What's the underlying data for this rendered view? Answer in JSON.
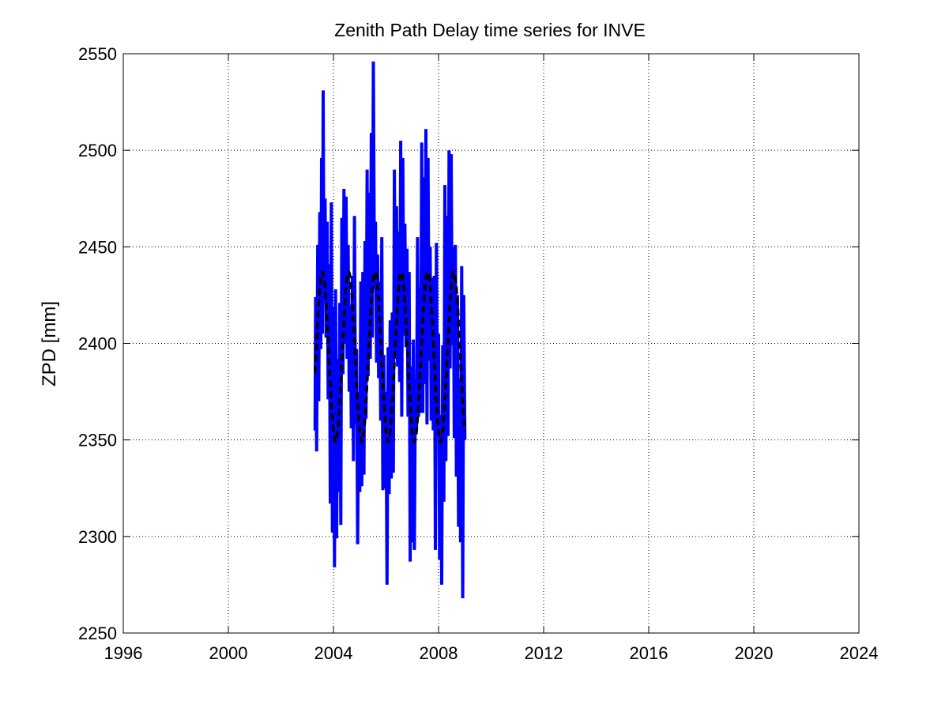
{
  "chart_data": {
    "type": "line",
    "title": "Zenith Path Delay time series for INVE",
    "xlabel": "",
    "ylabel": "ZPD [mm]",
    "xlim": [
      1996,
      2024
    ],
    "ylim": [
      2250,
      2550
    ],
    "xticks": [
      1996,
      2000,
      2004,
      2008,
      2012,
      2016,
      2020,
      2024
    ],
    "yticks": [
      2250,
      2300,
      2350,
      2400,
      2450,
      2500,
      2550
    ],
    "grid": true,
    "legend": "none",
    "series": [
      {
        "style": "solid",
        "color": "#0000ff",
        "x_start": 2003.3,
        "x_end": 2009.0,
        "y_min": 2268,
        "y_max": 2546,
        "values": [
          [
            2003.3,
            2355
          ],
          [
            2003.32,
            2424
          ],
          [
            2003.36,
            2344
          ],
          [
            2003.4,
            2451
          ],
          [
            2003.44,
            2370
          ],
          [
            2003.48,
            2468
          ],
          [
            2003.52,
            2397
          ],
          [
            2003.55,
            2496
          ],
          [
            2003.58,
            2405
          ],
          [
            2003.61,
            2531
          ],
          [
            2003.64,
            2421
          ],
          [
            2003.68,
            2475
          ],
          [
            2003.72,
            2403
          ],
          [
            2003.76,
            2463
          ],
          [
            2003.8,
            2371
          ],
          [
            2003.84,
            2441
          ],
          [
            2003.88,
            2317
          ],
          [
            2003.92,
            2473
          ],
          [
            2003.96,
            2302
          ],
          [
            2004.0,
            2419
          ],
          [
            2004.04,
            2284
          ],
          [
            2004.08,
            2428
          ],
          [
            2004.12,
            2299
          ],
          [
            2004.16,
            2392
          ],
          [
            2004.2,
            2323
          ],
          [
            2004.24,
            2421
          ],
          [
            2004.28,
            2306
          ],
          [
            2004.32,
            2465
          ],
          [
            2004.36,
            2384
          ],
          [
            2004.4,
            2480
          ],
          [
            2004.44,
            2400
          ],
          [
            2004.48,
            2476
          ],
          [
            2004.52,
            2392
          ],
          [
            2004.56,
            2451
          ],
          [
            2004.6,
            2375
          ],
          [
            2004.64,
            2420
          ],
          [
            2004.68,
            2356
          ],
          [
            2004.72,
            2435
          ],
          [
            2004.76,
            2339
          ],
          [
            2004.8,
            2466
          ],
          [
            2004.84,
            2358
          ],
          [
            2004.88,
            2397
          ],
          [
            2004.92,
            2296
          ],
          [
            2004.96,
            2375
          ],
          [
            2005.0,
            2323
          ],
          [
            2005.04,
            2432
          ],
          [
            2005.08,
            2326
          ],
          [
            2005.12,
            2437
          ],
          [
            2005.16,
            2332
          ],
          [
            2005.2,
            2453
          ],
          [
            2005.24,
            2361
          ],
          [
            2005.28,
            2490
          ],
          [
            2005.32,
            2383
          ],
          [
            2005.36,
            2478
          ],
          [
            2005.4,
            2392
          ],
          [
            2005.44,
            2509
          ],
          [
            2005.48,
            2403
          ],
          [
            2005.52,
            2546
          ],
          [
            2005.56,
            2428
          ],
          [
            2005.6,
            2463
          ],
          [
            2005.64,
            2390
          ],
          [
            2005.68,
            2446
          ],
          [
            2005.72,
            2382
          ],
          [
            2005.76,
            2432
          ],
          [
            2005.8,
            2360
          ],
          [
            2005.84,
            2455
          ],
          [
            2005.88,
            2324
          ],
          [
            2005.92,
            2394
          ],
          [
            2005.96,
            2325
          ],
          [
            2006.0,
            2375
          ],
          [
            2006.04,
            2275
          ],
          [
            2006.08,
            2398
          ],
          [
            2006.12,
            2322
          ],
          [
            2006.16,
            2412
          ],
          [
            2006.2,
            2330
          ],
          [
            2006.24,
            2416
          ],
          [
            2006.28,
            2333
          ],
          [
            2006.32,
            2490
          ],
          [
            2006.36,
            2392
          ],
          [
            2006.4,
            2471
          ],
          [
            2006.44,
            2388
          ],
          [
            2006.48,
            2458
          ],
          [
            2006.52,
            2380
          ],
          [
            2006.56,
            2505
          ],
          [
            2006.6,
            2362
          ],
          [
            2006.64,
            2496
          ],
          [
            2006.68,
            2404
          ],
          [
            2006.72,
            2462
          ],
          [
            2006.76,
            2398
          ],
          [
            2006.8,
            2449
          ],
          [
            2006.84,
            2362
          ],
          [
            2006.88,
            2437
          ],
          [
            2006.92,
            2287
          ],
          [
            2006.96,
            2388
          ],
          [
            2007.0,
            2297
          ],
          [
            2007.04,
            2402
          ],
          [
            2007.08,
            2293
          ],
          [
            2007.12,
            2382
          ],
          [
            2007.16,
            2356
          ],
          [
            2007.2,
            2455
          ],
          [
            2007.24,
            2362
          ],
          [
            2007.28,
            2429
          ],
          [
            2007.32,
            2364
          ],
          [
            2007.36,
            2504
          ],
          [
            2007.4,
            2364
          ],
          [
            2007.44,
            2486
          ],
          [
            2007.48,
            2379
          ],
          [
            2007.52,
            2511
          ],
          [
            2007.56,
            2358
          ],
          [
            2007.6,
            2496
          ],
          [
            2007.64,
            2391
          ],
          [
            2007.68,
            2450
          ],
          [
            2007.72,
            2360
          ],
          [
            2007.76,
            2434
          ],
          [
            2007.8,
            2355
          ],
          [
            2007.84,
            2435
          ],
          [
            2007.88,
            2293
          ],
          [
            2007.92,
            2452
          ],
          [
            2007.96,
            2357
          ],
          [
            2008.0,
            2405
          ],
          [
            2008.04,
            2288
          ],
          [
            2008.08,
            2363
          ],
          [
            2008.12,
            2275
          ],
          [
            2008.16,
            2399
          ],
          [
            2008.2,
            2318
          ],
          [
            2008.24,
            2482
          ],
          [
            2008.28,
            2339
          ],
          [
            2008.32,
            2466
          ],
          [
            2008.36,
            2352
          ],
          [
            2008.4,
            2500
          ],
          [
            2008.44,
            2387
          ],
          [
            2008.48,
            2498
          ],
          [
            2008.52,
            2399
          ],
          [
            2008.56,
            2450
          ],
          [
            2008.6,
            2351
          ],
          [
            2008.64,
            2451
          ],
          [
            2008.68,
            2331
          ],
          [
            2008.72,
            2425
          ],
          [
            2008.76,
            2305
          ],
          [
            2008.8,
            2382
          ],
          [
            2008.84,
            2297
          ],
          [
            2008.88,
            2440
          ],
          [
            2008.92,
            2268
          ],
          [
            2008.96,
            2425
          ],
          [
            2009.0,
            2350
          ]
        ]
      },
      {
        "style": "dashed",
        "color": "#000000",
        "model": "seasonal",
        "mean": 2393,
        "amplitude": 44,
        "peak_phase_year_fraction": 0.58,
        "x_start": 2003.3,
        "x_end": 2009.0
      }
    ]
  }
}
